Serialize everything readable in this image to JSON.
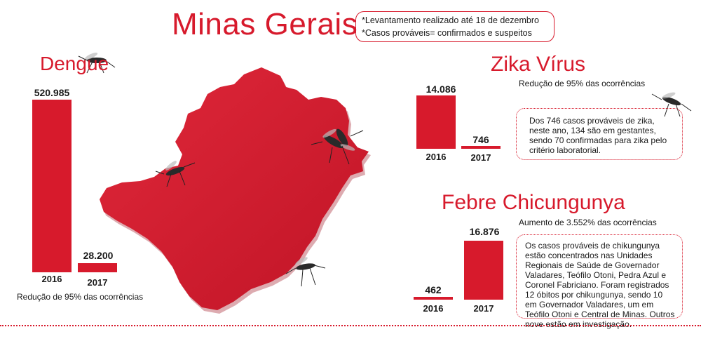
{
  "title": "Minas Gerais",
  "notes": [
    "*Levantamento realizado até 18 de dezembro",
    "*Casos prováveis= confirmados e suspeitos"
  ],
  "colors": {
    "accent": "#d71a2c",
    "map": "#d71a2c"
  },
  "icons": [
    "mosquito-icon",
    "minas-gerais-map"
  ],
  "chart_data": [
    {
      "type": "bar",
      "title": "Dengue",
      "categories": [
        "2016",
        "2017"
      ],
      "values": [
        520985,
        28200
      ],
      "value_labels": [
        "520.985",
        "28.200"
      ],
      "note": "Redução de 95% das ocorrências",
      "xlabel": "",
      "ylabel": ""
    },
    {
      "type": "bar",
      "title": "Zika Vírus",
      "categories": [
        "2016",
        "2017"
      ],
      "values": [
        14086,
        746
      ],
      "value_labels": [
        "14.086",
        "746"
      ],
      "note": "Redução de 95% das ocorrências",
      "description": "Dos 746 casos prováveis de zika, neste ano, 134 são em gestantes, sendo 70 confirmadas para zika pelo critério laboratorial.",
      "xlabel": "",
      "ylabel": ""
    },
    {
      "type": "bar",
      "title": "Febre Chicungunya",
      "categories": [
        "2016",
        "2017"
      ],
      "values": [
        462,
        16876
      ],
      "value_labels": [
        "462",
        "16.876"
      ],
      "note": "Aumento de 3.552% das ocorrências",
      "description": "Os casos prováveis de chikungunya estão concentrados nas Unidades Regionais de Saúde de Governador Valadares, Teófilo Otoni, Pedra Azul e Coronel Fabriciano. Foram registrados 12 óbitos por chikungunya, sendo 10 em Governador Valadares, um em Teófilo Otoni e Central de Minas. Outros nove estão em investigação.",
      "xlabel": "",
      "ylabel": ""
    }
  ]
}
